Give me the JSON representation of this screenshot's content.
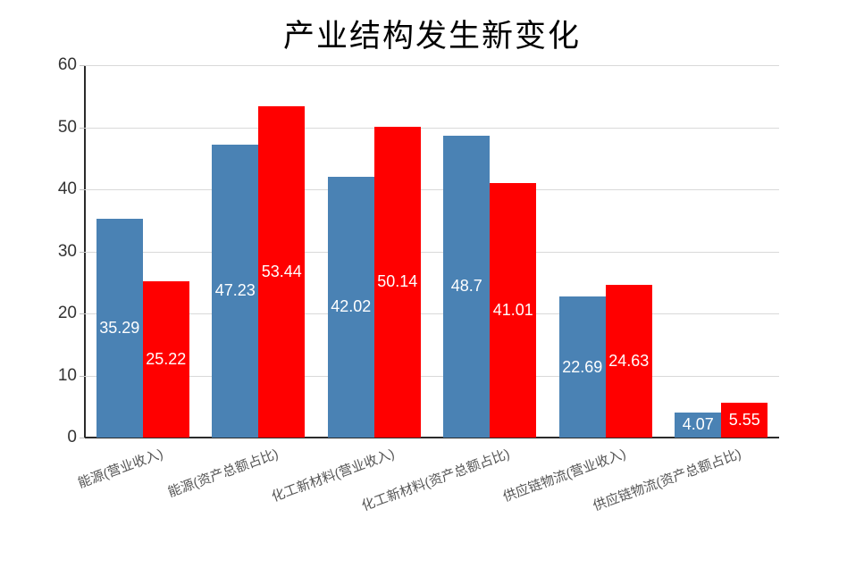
{
  "title": "产业结构发生新变化",
  "colors": {
    "series_blue": "#4A82B4",
    "series_red": "#FF0000",
    "gridline": "#D9D9D9",
    "axis_line": "#2B2B2B",
    "y_tick_label": "#333333",
    "x_category_label": "#555555",
    "bar_value_label": "#FFFFFF",
    "background": "#FFFFFF",
    "title_color": "#000000"
  },
  "chart_data": {
    "type": "bar",
    "title": "产业结构发生新变化",
    "categories": [
      "能源(营业收入)",
      "能源(资产总额占比)",
      "化工新材料(营业收入)",
      "化工新材料(资产总额占比)",
      "供应链物流(营业收入)",
      "供应链物流(资产总额占比)"
    ],
    "series": [
      {
        "name": "blue-series",
        "color": "#4A82B4",
        "values": [
          35.29,
          47.23,
          42.02,
          48.7,
          22.69,
          4.07
        ]
      },
      {
        "name": "red-series",
        "color": "#FF0000",
        "values": [
          25.22,
          53.44,
          50.14,
          41.01,
          24.63,
          5.55
        ]
      }
    ],
    "xlabel": "",
    "ylabel": "",
    "ylim": [
      0,
      60
    ],
    "yticks": [
      0,
      10,
      20,
      30,
      40,
      50,
      60
    ],
    "grid": true,
    "legend": false,
    "value_labels": true
  }
}
